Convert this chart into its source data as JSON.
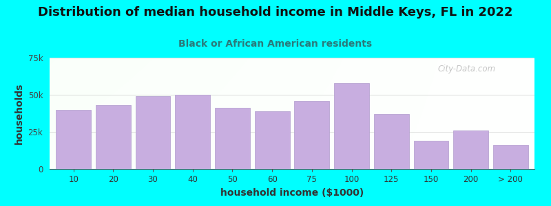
{
  "title": "Distribution of median household income in Middle Keys, FL in 2022",
  "subtitle": "Black or African American residents",
  "xlabel": "household income ($1000)",
  "ylabel": "households",
  "background_color": "#00FFFF",
  "bar_color": "#c8aee0",
  "bar_edge_color": "#b09ccc",
  "categories": [
    "10",
    "20",
    "30",
    "40",
    "50",
    "60",
    "75",
    "100",
    "125",
    "150",
    "200",
    "> 200"
  ],
  "values": [
    40000,
    43000,
    49000,
    50000,
    41000,
    39000,
    46000,
    58000,
    37000,
    19000,
    26000,
    16000
  ],
  "ylim": [
    0,
    75000
  ],
  "yticks": [
    0,
    25000,
    50000,
    75000
  ],
  "ytick_labels": [
    "0",
    "25k",
    "50k",
    "75k"
  ],
  "title_fontsize": 13,
  "subtitle_fontsize": 10,
  "axis_label_fontsize": 10,
  "tick_fontsize": 8.5,
  "subtitle_color": "#2a7a7a",
  "title_color": "#111111",
  "watermark_text": "City-Data.com"
}
